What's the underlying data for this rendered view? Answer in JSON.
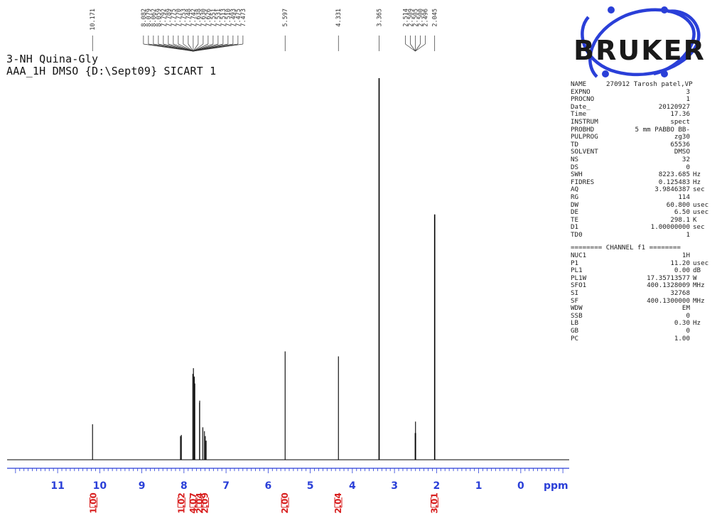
{
  "header": {
    "title_line1": "3-NH Quina-Gly",
    "title_line2": "AAA_1H DMSO {D:\\Sept09} SICART 1"
  },
  "logo": {
    "text": "BRUKER",
    "color": "#2a3fd8"
  },
  "colors": {
    "spectrum": "#000000",
    "axis": "#2a3fd8",
    "integral": "#d81f1f"
  },
  "parameters": [
    {
      "name": "NAME",
      "value": "270912 Tarosh patel,VP",
      "unit": ""
    },
    {
      "name": "EXPNO",
      "value": "3",
      "unit": ""
    },
    {
      "name": "PROCNO",
      "value": "1",
      "unit": ""
    },
    {
      "name": "Date_",
      "value": "20120927",
      "unit": ""
    },
    {
      "name": "Time",
      "value": "17.36",
      "unit": ""
    },
    {
      "name": "INSTRUM",
      "value": "spect",
      "unit": ""
    },
    {
      "name": "PROBHD",
      "value": "5 mm PABBO BB-",
      "unit": ""
    },
    {
      "name": "PULPROG",
      "value": "zg30",
      "unit": ""
    },
    {
      "name": "TD",
      "value": "65536",
      "unit": ""
    },
    {
      "name": "SOLVENT",
      "value": "DMSO",
      "unit": ""
    },
    {
      "name": "NS",
      "value": "32",
      "unit": ""
    },
    {
      "name": "DS",
      "value": "0",
      "unit": ""
    },
    {
      "name": "SWH",
      "value": "8223.685",
      "unit": "Hz"
    },
    {
      "name": "FIDRES",
      "value": "0.125483",
      "unit": "Hz"
    },
    {
      "name": "AQ",
      "value": "3.9846387",
      "unit": "sec"
    },
    {
      "name": "RG",
      "value": "114",
      "unit": ""
    },
    {
      "name": "DW",
      "value": "60.800",
      "unit": "usec"
    },
    {
      "name": "DE",
      "value": "6.50",
      "unit": "usec"
    },
    {
      "name": "TE",
      "value": "298.1",
      "unit": "K"
    },
    {
      "name": "D1",
      "value": "1.00000000",
      "unit": "sec"
    },
    {
      "name": "TD0",
      "value": "1",
      "unit": ""
    }
  ],
  "channel_header": "======== CHANNEL f1 ========",
  "channel_parameters": [
    {
      "name": "NUC1",
      "value": "1H",
      "unit": ""
    },
    {
      "name": "P1",
      "value": "11.20",
      "unit": "usec"
    },
    {
      "name": "PL1",
      "value": "0.00",
      "unit": "dB"
    },
    {
      "name": "PL1W",
      "value": "17.35713577",
      "unit": "W"
    },
    {
      "name": "SFO1",
      "value": "400.1328009",
      "unit": "MHz"
    },
    {
      "name": "SI",
      "value": "32768",
      "unit": ""
    },
    {
      "name": "SF",
      "value": "400.1300000",
      "unit": "MHz"
    },
    {
      "name": "WDW",
      "value": "EM",
      "unit": ""
    },
    {
      "name": "SSB",
      "value": "0",
      "unit": ""
    },
    {
      "name": "LB",
      "value": "0.30",
      "unit": "Hz"
    },
    {
      "name": "GB",
      "value": "0",
      "unit": ""
    },
    {
      "name": "PC",
      "value": "1.00",
      "unit": ""
    }
  ],
  "chart_data": {
    "type": "line",
    "xlabel": "ppm",
    "xlim": [
      12.2,
      -1.15
    ],
    "x_ticks": [
      11,
      10,
      9,
      8,
      7,
      6,
      5,
      4,
      3,
      2,
      1,
      0
    ],
    "ylim": [
      0,
      1.0
    ],
    "peaks": [
      {
        "ppm": 10.171,
        "height": 0.093
      },
      {
        "ppm": 8.082,
        "height": 0.062
      },
      {
        "ppm": 8.062,
        "height": 0.065
      },
      {
        "ppm": 7.789,
        "height": 0.225
      },
      {
        "ppm": 7.775,
        "height": 0.24
      },
      {
        "ppm": 7.753,
        "height": 0.218
      },
      {
        "ppm": 7.742,
        "height": 0.2
      },
      {
        "ppm": 7.63,
        "height": 0.15
      },
      {
        "ppm": 7.626,
        "height": 0.155
      },
      {
        "ppm": 7.551,
        "height": 0.085
      },
      {
        "ppm": 7.513,
        "height": 0.075
      },
      {
        "ppm": 7.493,
        "height": 0.062
      },
      {
        "ppm": 7.473,
        "height": 0.05
      },
      {
        "ppm": 5.597,
        "height": 0.284
      },
      {
        "ppm": 4.331,
        "height": 0.271
      },
      {
        "ppm": 3.365,
        "height": 1.0
      },
      {
        "ppm": 2.509,
        "height": 0.07
      },
      {
        "ppm": 2.5,
        "height": 0.1
      },
      {
        "ppm": 2.496,
        "height": 0.07
      },
      {
        "ppm": 2.045,
        "height": 0.643
      }
    ],
    "peak_labels": [
      {
        "group": "a",
        "labels": [
          "10.171"
        ],
        "anchor_ppm": 10.171
      },
      {
        "group": "b",
        "labels": [
          "8.082",
          "8.079",
          "8.062",
          "8.059",
          "7.792",
          "7.789",
          "7.775",
          "7.770",
          "7.753",
          "7.748",
          "7.742",
          "7.638",
          "7.630",
          "7.626",
          "7.551",
          "7.531",
          "7.513",
          "7.510",
          "7.493",
          "7.475",
          "7.473"
        ],
        "anchor_ppm": 7.78
      },
      {
        "group": "c",
        "labels": [
          "5.597"
        ],
        "anchor_ppm": 5.597
      },
      {
        "group": "d",
        "labels": [
          "4.331"
        ],
        "anchor_ppm": 4.331
      },
      {
        "group": "e",
        "labels": [
          "3.365"
        ],
        "anchor_ppm": 3.365
      },
      {
        "group": "f",
        "labels": [
          "2.514",
          "2.509",
          "2.505",
          "2.500",
          "2.496"
        ],
        "anchor_ppm": 2.505
      },
      {
        "group": "g",
        "labels": [
          "2.045"
        ],
        "anchor_ppm": 2.045
      }
    ],
    "integrals": [
      {
        "ppm_from": 10.25,
        "ppm_to": 10.05,
        "value": "1.00"
      },
      {
        "ppm_from": 8.12,
        "ppm_to": 8.0,
        "value": "1.02"
      },
      {
        "ppm_from": 7.85,
        "ppm_to": 7.7,
        "value": "4.07"
      },
      {
        "ppm_from": 7.68,
        "ppm_to": 7.58,
        "value": "2.04"
      },
      {
        "ppm_from": 7.56,
        "ppm_to": 7.44,
        "value": "2.09"
      },
      {
        "ppm_from": 5.68,
        "ppm_to": 5.52,
        "value": "2.00"
      },
      {
        "ppm_from": 4.42,
        "ppm_to": 4.25,
        "value": "2.04"
      },
      {
        "ppm_from": 2.12,
        "ppm_to": 1.98,
        "value": "3.01"
      }
    ]
  }
}
